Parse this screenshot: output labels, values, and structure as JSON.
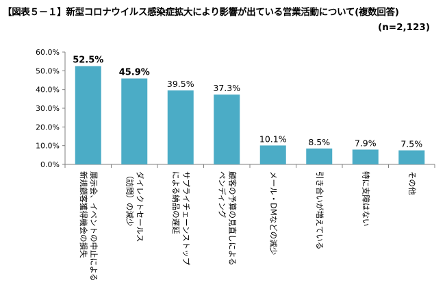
{
  "title": "【図表５－１】新型コロナウイルス感染症拡大により影響が出ている営業活動について(複数回答)",
  "sample_size": "(n=2,123)",
  "colors": {
    "bar": "#4BACC6",
    "axis": "#7F7F7F",
    "grid": "#D9D9D9"
  },
  "chart_data": {
    "type": "bar",
    "title": "【図表５－１】新型コロナウイルス感染症拡大により影響が出ている営業活動について(複数回答)",
    "xlabel": "",
    "ylabel": "",
    "ylim": [
      0,
      60
    ],
    "y_ticks": [
      "0.0%",
      "10.0%",
      "20.0%",
      "30.0%",
      "40.0%",
      "50.0%",
      "60.0%"
    ],
    "grid": false,
    "categories": [
      [
        "展示会、イベントの中止による",
        "新規顧客獲得機会の損失"
      ],
      [
        "ダイレクトセールス",
        "（訪問）の減少"
      ],
      [
        "サプライチェーンストップ",
        "による納品の遅延"
      ],
      [
        "顧客の予算の見直しによる",
        "ペンディング"
      ],
      [
        "メール・DMなどの減少"
      ],
      [
        "引き合いが増えている"
      ],
      [
        "特に支障はない"
      ],
      [
        "その他"
      ]
    ],
    "values": [
      52.5,
      45.9,
      39.5,
      37.3,
      10.1,
      8.5,
      7.9,
      7.5
    ],
    "data_labels": [
      "52.5%",
      "45.9%",
      "39.5%",
      "37.3%",
      "10.1%",
      "8.5%",
      "7.9%",
      "7.5%"
    ],
    "bold_labels": [
      true,
      true,
      false,
      false,
      false,
      false,
      false,
      false
    ]
  }
}
